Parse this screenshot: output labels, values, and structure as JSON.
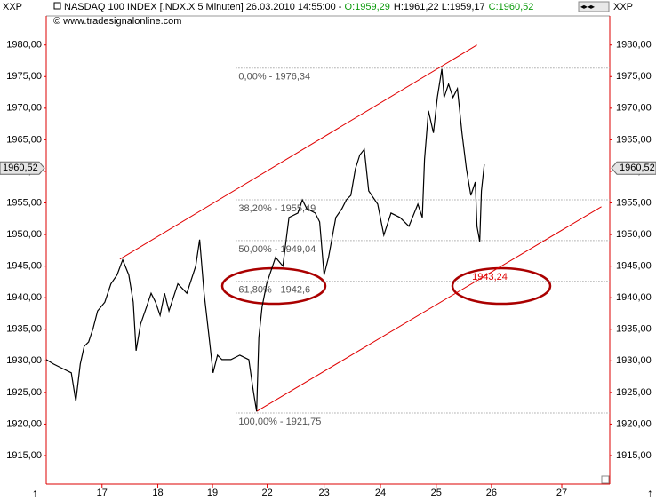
{
  "header": {
    "symbol_left": "XXP",
    "symbol_right": "XXP",
    "title": "NASDAQ 100 INDEX [.NDX.X  5 Minuten] 26.03.2010 14:55:00 - ",
    "open": "O:1959,29",
    "high_low": "H:1961,22 L:1959,17",
    "close": "C:1960,52",
    "copyright": "© www.tradesignalonline.com"
  },
  "chart_data": {
    "type": "line",
    "color": "#000000",
    "x": [
      0,
      0.13,
      0.29,
      0.45,
      0.53,
      0.61,
      0.68,
      0.76,
      0.84,
      0.92,
      1.05,
      1.16,
      1.27,
      1.37,
      1.48,
      1.56,
      1.61,
      1.69,
      1.8,
      1.88,
      1.96,
      2.04,
      2.12,
      2.2,
      2.36,
      2.52,
      2.68,
      2.75,
      2.83,
      2.91,
      2.99,
      3.07,
      3.15,
      3.31,
      3.47,
      3.63,
      3.71,
      3.77,
      3.81,
      3.87,
      3.95,
      4.03,
      4.11,
      4.24,
      4.35,
      4.51,
      4.59,
      4.67,
      4.82,
      4.9,
      4.98,
      5.06,
      5.19,
      5.3,
      5.38,
      5.46,
      5.54,
      5.62,
      5.7,
      5.78,
      5.94,
      6.05,
      6.18,
      6.34,
      6.5,
      6.66,
      6.74,
      6.78,
      6.85,
      6.94,
      7.01,
      7.09,
      7.13,
      7.21,
      7.29,
      7.37,
      7.45,
      7.53,
      7.61,
      7.69,
      7.72,
      7.77,
      7.8,
      7.85
    ],
    "values": [
      1930.2,
      1929.5,
      1928.8,
      1928.1,
      1923.6,
      1929.5,
      1932.3,
      1933.0,
      1935.1,
      1937.9,
      1939.3,
      1942.2,
      1943.6,
      1946.0,
      1943.6,
      1939.3,
      1931.6,
      1935.8,
      1938.6,
      1940.7,
      1939.3,
      1937.2,
      1940.7,
      1937.9,
      1942.2,
      1940.7,
      1945.0,
      1949.2,
      1940.7,
      1934.4,
      1928.1,
      1930.9,
      1930.2,
      1930.2,
      1930.9,
      1930.2,
      1925.3,
      1922.0,
      1933.7,
      1938.6,
      1942.2,
      1944.3,
      1946.4,
      1945.0,
      1952.7,
      1953.4,
      1955.5,
      1954.1,
      1953.4,
      1952.0,
      1943.6,
      1946.4,
      1952.7,
      1954.1,
      1955.5,
      1956.2,
      1960.4,
      1962.6,
      1963.5,
      1956.9,
      1954.8,
      1949.9,
      1953.4,
      1952.7,
      1951.3,
      1954.8,
      1952.7,
      1961.9,
      1969.6,
      1966.1,
      1971.7,
      1976.2,
      1971.7,
      1973.8,
      1971.7,
      1973.1,
      1966.1,
      1960.4,
      1956.2,
      1958.3,
      1951.3,
      1948.9,
      1956.9,
      1961.1
    ],
    "xlim": [
      0,
      10.1
    ],
    "xticks": [
      {
        "value": 1.0,
        "label": "17"
      },
      {
        "value": 2.0,
        "label": "18"
      },
      {
        "value": 2.98,
        "label": "19"
      },
      {
        "value": 3.96,
        "label": "22"
      },
      {
        "value": 4.98,
        "label": "23"
      },
      {
        "value": 5.99,
        "label": "24"
      },
      {
        "value": 6.99,
        "label": "25"
      },
      {
        "value": 7.98,
        "label": "26"
      },
      {
        "value": 9.24,
        "label": "27"
      }
    ],
    "ylim": [
      1910.5,
      1984.6
    ],
    "yticks": [
      {
        "value": 1915,
        "label": "1915,00"
      },
      {
        "value": 1920,
        "label": "1920,00"
      },
      {
        "value": 1925,
        "label": "1925,00"
      },
      {
        "value": 1930,
        "label": "1930,00"
      },
      {
        "value": 1935,
        "label": "1935,00"
      },
      {
        "value": 1940,
        "label": "1940,00"
      },
      {
        "value": 1945,
        "label": "1945,00"
      },
      {
        "value": 1950,
        "label": "1950,00"
      },
      {
        "value": 1955,
        "label": "1955,00"
      },
      {
        "value": 1960,
        "label": "1960,00"
      },
      {
        "value": 1965,
        "label": "1965,00"
      },
      {
        "value": 1970,
        "label": "1970,00"
      },
      {
        "value": 1975,
        "label": "1975,00"
      },
      {
        "value": 1980,
        "label": "1980,00"
      }
    ],
    "last_price": {
      "value": 1960.52,
      "label": "1960,52"
    },
    "fib_levels": [
      {
        "value": 1976.34,
        "label": "0,00% - 1976,34"
      },
      {
        "value": 1955.49,
        "label": "38,20% - 1955,49"
      },
      {
        "value": 1949.04,
        "label": "50,00% - 1949,04"
      },
      {
        "value": 1942.6,
        "label": "61,80% - 1942,6"
      },
      {
        "value": 1921.75,
        "label": "100,00% - 1921,75"
      }
    ],
    "fib_start_x": 3.4,
    "trendlines": [
      {
        "x": [
          1.32,
          7.72
        ],
        "values": [
          1946.1,
          1980.0
        ]
      },
      {
        "x": [
          3.77,
          9.95
        ],
        "values": [
          1922.0,
          1954.4
        ]
      }
    ],
    "trendline_color": "#e00000",
    "annotation": {
      "x": 7.95,
      "value": 1943.24,
      "label": "1943,24"
    }
  }
}
